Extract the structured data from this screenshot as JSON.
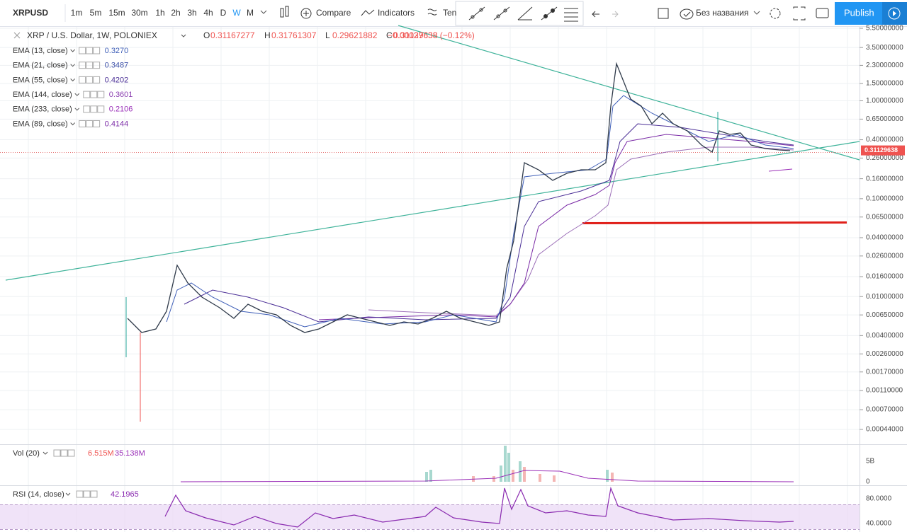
{
  "toolbar": {
    "symbol": "XRPUSD",
    "intervals": [
      "1m",
      "5m",
      "15m",
      "30m",
      "1h",
      "2h",
      "3h",
      "4h",
      "D",
      "W",
      "M"
    ],
    "compare": "Compare",
    "indicators": "Indicators",
    "templates": "Ten",
    "layout_name": "Без названия",
    "publish": "Publish"
  },
  "legend": {
    "title": "XRP / U.S. Dollar, 1W, POLONIEX",
    "ohlc": [
      {
        "label": "O",
        "value": "0.31167277"
      },
      {
        "label": "H",
        "value": "0.31761307"
      },
      {
        "label": "L",
        "value": "0.29621882"
      },
      {
        "label": "C",
        "value": "0.31129638"
      }
    ],
    "change": "−0.00037638 (−0.12%)"
  },
  "indicators": [
    {
      "name": "EMA (13, close)",
      "value": "0.3270",
      "color": "#3f5fb8"
    },
    {
      "name": "EMA (21, close)",
      "value": "0.3487",
      "color": "#3b4fa8"
    },
    {
      "name": "EMA (55, close)",
      "value": "0.4202",
      "color": "#4a2e96"
    },
    {
      "name": "EMA (144, close)",
      "value": "0.3601",
      "color": "#8b3fb0"
    },
    {
      "name": "EMA (233, close)",
      "value": "0.2106",
      "color": "#9a2fb8"
    },
    {
      "name": "EMA (89, close)",
      "value": "0.4144",
      "color": "#7a2aa6"
    }
  ],
  "price_axis": {
    "ticks": [
      "5.50000000",
      "3.50000000",
      "2.30000000",
      "1.50000000",
      "1.00000000",
      "0.65000000",
      "0.40000000",
      "0.26000000",
      "0.16000000",
      "0.10000000",
      "0.06500000",
      "0.04000000",
      "0.02600000",
      "0.01600000",
      "0.01000000",
      "0.00650000",
      "0.00400000",
      "0.00260000",
      "0.00170000",
      "0.00110000",
      "0.00070000",
      "0.00044000"
    ],
    "current": "0.31129638"
  },
  "volume": {
    "name": "Vol (20)",
    "values": [
      "6.515M",
      "35.138M"
    ],
    "ticks": [
      "5B",
      "0"
    ]
  },
  "rsi": {
    "name": "RSI (14, close)",
    "value": "42.1965",
    "ticks": [
      "80.0000",
      "40.0000"
    ]
  }
}
